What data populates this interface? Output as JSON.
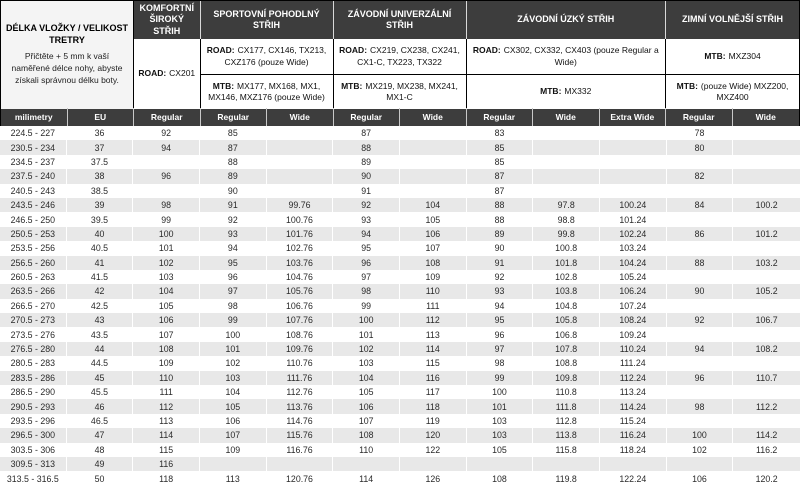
{
  "colors": {
    "header_bg": "#3d3d3d",
    "row_alt": "#e8e8e8",
    "info_bg": "#f4f4f4"
  },
  "info": {
    "title": "DÉLKA VLOŽKY / VELIKOST TRETRY",
    "body": "Přičtěte + 5 mm k vaší naměřené délce nohy, abyste získali správnou délku boty."
  },
  "groups": {
    "komfortni": {
      "title": "KOMFORTNÍ ŠIROKÝ STŘIH",
      "road_label": "ROAD:",
      "road": "CX201"
    },
    "sportovni": {
      "title": "SPORTOVNÍ POHODLNÝ STŘIH",
      "road_label": "ROAD:",
      "road": "CX177, CX146, TX213, CXZ176 (pouze Wide)",
      "mtb_label": "MTB:",
      "mtb": "MX177, MX168, MX1, MX146, MXZ176 (pouze Wide)"
    },
    "univerzalni": {
      "title": "ZÁVODNÍ UNIVERZÁLNÍ STŘIH",
      "road_label": "ROAD:",
      "road": "CX219, CX238, CX241, CX1-C, TX223, TX322",
      "mtb_label": "MTB:",
      "mtb": "MX219, MX238, MX241, MX1-C"
    },
    "uzky": {
      "title": "ZÁVODNÍ ÚZKÝ STŘIH",
      "road_label": "ROAD:",
      "road": "CX302, CX332, CX403 (pouze Regular a Wide)",
      "mtb_label": "MTB:",
      "mtb": "MX332"
    },
    "zimni": {
      "title": "ZIMNÍ VOLNĚJŠÍ STŘIH",
      "row1_label": "MTB:",
      "row1": "MXZ304",
      "row2_label": "MTB:",
      "row2": "(pouze Wide) MXZ200, MXZ400"
    }
  },
  "columns": [
    "milimetry",
    "EU",
    "Regular",
    "Regular",
    "Wide",
    "Regular",
    "Wide",
    "Regular",
    "Wide",
    "Extra Wide",
    "Regular",
    "Wide"
  ],
  "rows": [
    [
      "224.5 - 227",
      "36",
      "92",
      "85",
      "",
      "87",
      "",
      "83",
      "",
      "",
      "78",
      ""
    ],
    [
      "230.5 - 234",
      "37",
      "94",
      "87",
      "",
      "88",
      "",
      "85",
      "",
      "",
      "80",
      ""
    ],
    [
      "234.5 - 237",
      "37.5",
      "",
      "88",
      "",
      "89",
      "",
      "85",
      "",
      "",
      "",
      ""
    ],
    [
      "237.5 - 240",
      "38",
      "96",
      "89",
      "",
      "90",
      "",
      "87",
      "",
      "",
      "82",
      ""
    ],
    [
      "240.5 - 243",
      "38.5",
      "",
      "90",
      "",
      "91",
      "",
      "87",
      "",
      "",
      "",
      ""
    ],
    [
      "243.5 - 246",
      "39",
      "98",
      "91",
      "99.76",
      "92",
      "104",
      "88",
      "97.8",
      "100.24",
      "84",
      "100.2"
    ],
    [
      "246.5 - 250",
      "39.5",
      "99",
      "92",
      "100.76",
      "93",
      "105",
      "88",
      "98.8",
      "101.24",
      "",
      ""
    ],
    [
      "250.5 - 253",
      "40",
      "100",
      "93",
      "101.76",
      "94",
      "106",
      "89",
      "99.8",
      "102.24",
      "86",
      "101.2"
    ],
    [
      "253.5 - 256",
      "40.5",
      "101",
      "94",
      "102.76",
      "95",
      "107",
      "90",
      "100.8",
      "103.24",
      "",
      ""
    ],
    [
      "256.5 - 260",
      "41",
      "102",
      "95",
      "103.76",
      "96",
      "108",
      "91",
      "101.8",
      "104.24",
      "88",
      "103.2"
    ],
    [
      "260.5 - 263",
      "41.5",
      "103",
      "96",
      "104.76",
      "97",
      "109",
      "92",
      "102.8",
      "105.24",
      "",
      ""
    ],
    [
      "263.5 - 266",
      "42",
      "104",
      "97",
      "105.76",
      "98",
      "110",
      "93",
      "103.8",
      "106.24",
      "90",
      "105.2"
    ],
    [
      "266.5 - 270",
      "42.5",
      "105",
      "98",
      "106.76",
      "99",
      "111",
      "94",
      "104.8",
      "107.24",
      "",
      ""
    ],
    [
      "270.5 - 273",
      "43",
      "106",
      "99",
      "107.76",
      "100",
      "112",
      "95",
      "105.8",
      "108.24",
      "92",
      "106.7"
    ],
    [
      "273.5 - 276",
      "43.5",
      "107",
      "100",
      "108.76",
      "101",
      "113",
      "96",
      "106.8",
      "109.24",
      "",
      ""
    ],
    [
      "276.5 - 280",
      "44",
      "108",
      "101",
      "109.76",
      "102",
      "114",
      "97",
      "107.8",
      "110.24",
      "94",
      "108.2"
    ],
    [
      "280.5 - 283",
      "44.5",
      "109",
      "102",
      "110.76",
      "103",
      "115",
      "98",
      "108.8",
      "111.24",
      "",
      ""
    ],
    [
      "283.5 - 286",
      "45",
      "110",
      "103",
      "111.76",
      "104",
      "116",
      "99",
      "109.8",
      "112.24",
      "96",
      "110.7"
    ],
    [
      "286.5 - 290",
      "45.5",
      "111",
      "104",
      "112.76",
      "105",
      "117",
      "100",
      "110.8",
      "113.24",
      "",
      ""
    ],
    [
      "290.5 - 293",
      "46",
      "112",
      "105",
      "113.76",
      "106",
      "118",
      "101",
      "111.8",
      "114.24",
      "98",
      "112.2"
    ],
    [
      "293.5 - 296",
      "46.5",
      "113",
      "106",
      "114.76",
      "107",
      "119",
      "103",
      "112.8",
      "115.24",
      "",
      ""
    ],
    [
      "296.5 - 300",
      "47",
      "114",
      "107",
      "115.76",
      "108",
      "120",
      "103",
      "113.8",
      "116.24",
      "100",
      "114.2"
    ],
    [
      "303.5 - 306",
      "48",
      "115",
      "109",
      "116.76",
      "110",
      "122",
      "105",
      "115.8",
      "118.24",
      "102",
      "116.2"
    ],
    [
      "309.5 - 313",
      "49",
      "116",
      "",
      "",
      "",
      "",
      "",
      "",
      "",
      "",
      ""
    ],
    [
      "313.5 - 316.5",
      "50",
      "118",
      "113",
      "120.76",
      "114",
      "126",
      "108",
      "119.8",
      "122.24",
      "106",
      "120.2"
    ]
  ]
}
